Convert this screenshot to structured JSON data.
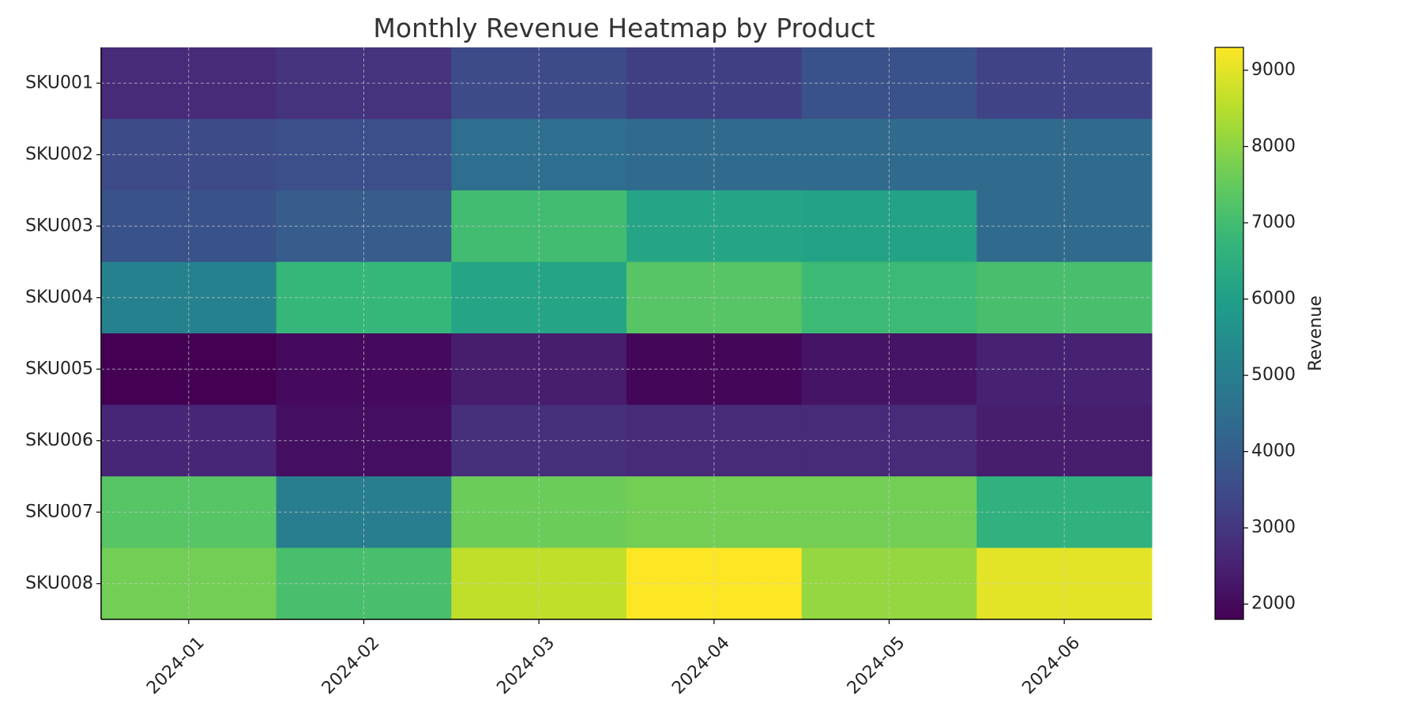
{
  "chart_data": {
    "type": "heatmap",
    "title": "Monthly Revenue Heatmap by Product",
    "x": [
      "2024-01",
      "2024-02",
      "2024-03",
      "2024-04",
      "2024-05",
      "2024-06"
    ],
    "y": [
      "SKU001",
      "SKU002",
      "SKU003",
      "SKU004",
      "SKU005",
      "SKU006",
      "SKU007",
      "SKU008"
    ],
    "values": [
      [
        2700,
        2900,
        3500,
        3200,
        3700,
        3300
      ],
      [
        3500,
        3600,
        4500,
        4400,
        4400,
        4400
      ],
      [
        3700,
        4000,
        7000,
        6200,
        6100,
        4400
      ],
      [
        5100,
        6800,
        6200,
        7300,
        6900,
        7100
      ],
      [
        1800,
        2000,
        2400,
        1900,
        2200,
        2500
      ],
      [
        2600,
        2100,
        2800,
        2700,
        2700,
        2400
      ],
      [
        7300,
        5000,
        7600,
        7700,
        7700,
        6600
      ],
      [
        7700,
        7100,
        8600,
        9300,
        8100,
        9000
      ]
    ],
    "colorbar": {
      "label": "Revenue",
      "ticks": [
        2000,
        3000,
        4000,
        5000,
        6000,
        7000,
        8000,
        9000
      ],
      "range": [
        1800,
        9300
      ]
    },
    "colormap": "viridis",
    "grid": true
  }
}
